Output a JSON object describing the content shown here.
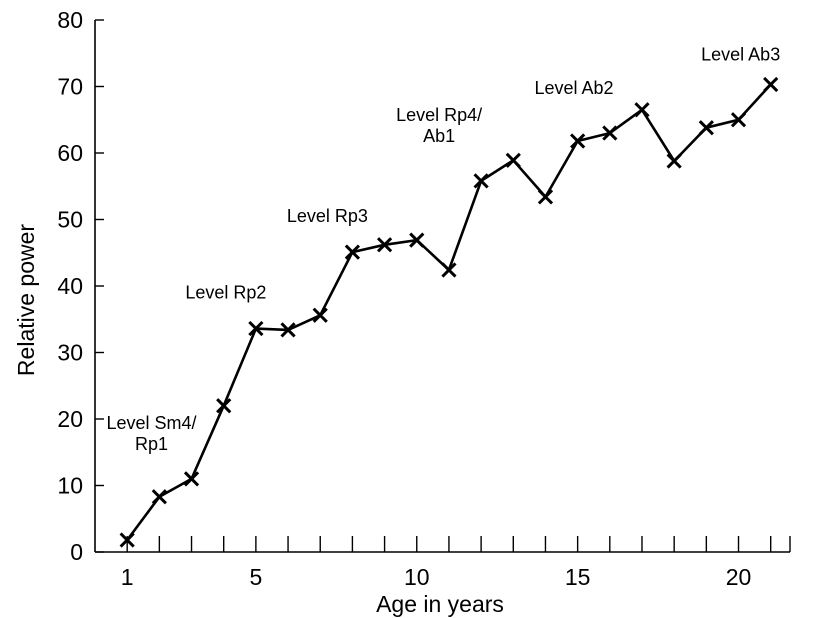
{
  "chart_data": {
    "type": "line",
    "xlabel": "Age in years",
    "ylabel": "Relative power",
    "xlim": [
      0,
      21.6
    ],
    "ylim": [
      0,
      80
    ],
    "x_ticks_minor": [
      1,
      2,
      3,
      4,
      5,
      6,
      7,
      8,
      9,
      10,
      11,
      12,
      13,
      14,
      15,
      16,
      17,
      18,
      19,
      20,
      21
    ],
    "x_tick_labels": [
      "1",
      "5",
      "10",
      "15",
      "20"
    ],
    "x_tick_label_values": [
      1,
      5,
      10,
      15,
      20
    ],
    "y_ticks": [
      0,
      10,
      20,
      30,
      40,
      50,
      60,
      70,
      80
    ],
    "y_tick_labels": [
      "0",
      "10",
      "20",
      "30",
      "40",
      "50",
      "60",
      "70",
      "80"
    ],
    "marker": "x",
    "color": "#000000",
    "grid": false,
    "series": [
      {
        "x": [
          1,
          2,
          3,
          4,
          5,
          6,
          7,
          8,
          9,
          10,
          11,
          12,
          13,
          14,
          15,
          16,
          17,
          18,
          19,
          20,
          21
        ],
        "values": [
          1.8,
          8.3,
          11,
          22,
          33.6,
          33.4,
          35.6,
          45.1,
          46.2,
          46.9,
          42.4,
          55.8,
          58.9,
          53.4,
          61.8,
          63,
          66.5,
          58.8,
          63.8,
          65,
          70.3
        ]
      }
    ],
    "annotations": [
      {
        "lines": [
          "Level Sm4/",
          "Rp1"
        ],
        "x": 3,
        "y": 11
      },
      {
        "lines": [
          "Level Rp2"
        ],
        "x": 5,
        "y": 33.6
      },
      {
        "lines": [
          "Level Rp3"
        ],
        "x": 8,
        "y": 45.1
      },
      {
        "lines": [
          "Level Rp4/",
          "Ab1"
        ],
        "x": 12,
        "y": 55.8
      },
      {
        "lines": [
          "Level Ab2"
        ],
        "x": 17,
        "y": 66.5
      },
      {
        "lines": [
          "Level Ab3"
        ],
        "x": 21,
        "y": 70.3
      }
    ]
  }
}
